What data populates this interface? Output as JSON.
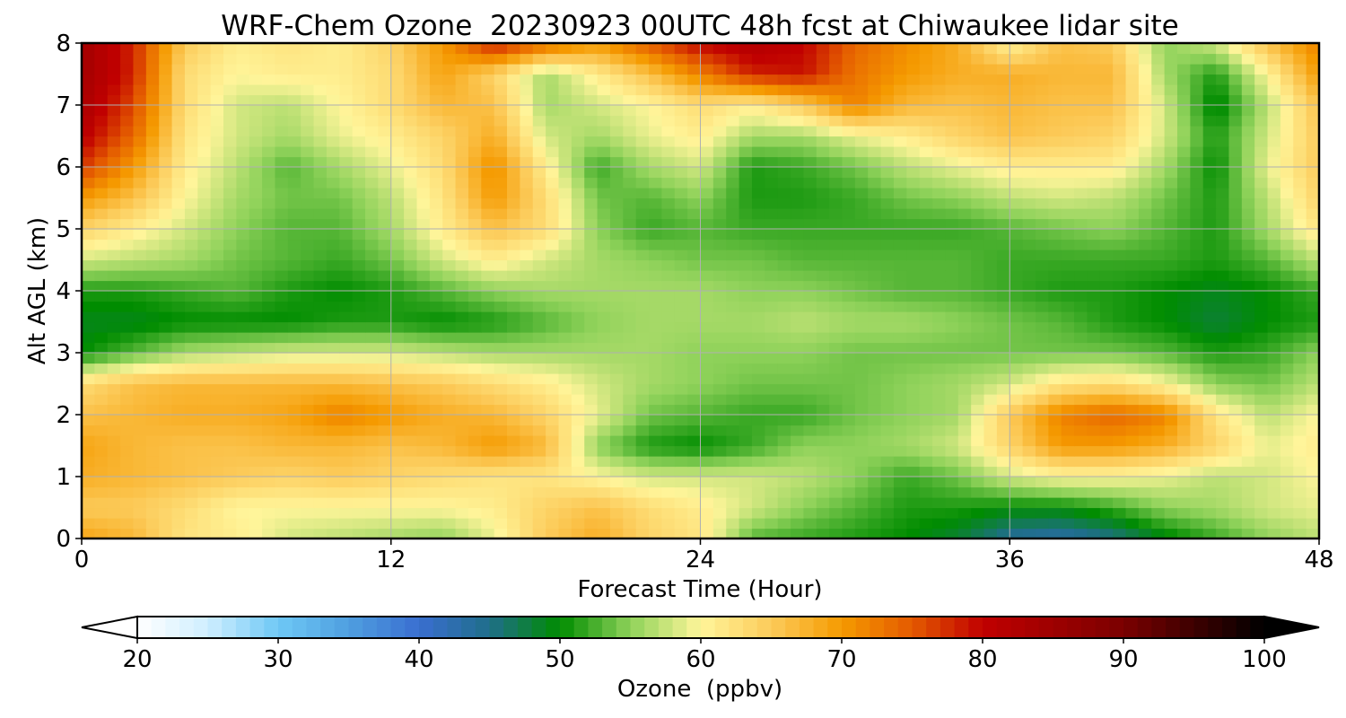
{
  "chart_data": {
    "type": "heatmap",
    "title": "WRF-Chem Ozone  20230923 00UTC 48h fcst at Chiwaukee lidar site",
    "xlabel": "Forecast Time (Hour)",
    "ylabel": "Alt AGL (km)",
    "xlim": [
      0,
      48
    ],
    "ylim": [
      0,
      8
    ],
    "xticks": [
      0,
      12,
      24,
      36,
      48
    ],
    "xtick_labels": [
      "0",
      "12",
      "24",
      "36",
      "48"
    ],
    "yticks": [
      0,
      1,
      2,
      3,
      4,
      5,
      6,
      7,
      8
    ],
    "ytick_labels": [
      "0",
      "1",
      "2",
      "3",
      "4",
      "5",
      "6",
      "7",
      "8"
    ],
    "grid": true,
    "colorbar": {
      "label": "Ozone  (ppbv)",
      "orientation": "horizontal",
      "min": 20,
      "max": 100,
      "ticks": [
        20,
        30,
        40,
        50,
        60,
        70,
        80,
        90,
        100
      ],
      "tick_labels": [
        "20",
        "30",
        "40",
        "50",
        "60",
        "70",
        "80",
        "90",
        "100"
      ],
      "extend": "both",
      "color_stops": [
        [
          20,
          "#ffffff"
        ],
        [
          25,
          "#cfeeff"
        ],
        [
          30,
          "#6ec8f5"
        ],
        [
          35,
          "#4f9fe0"
        ],
        [
          40,
          "#3a6ed0"
        ],
        [
          45,
          "#1f6e8a"
        ],
        [
          50,
          "#008c00"
        ],
        [
          55,
          "#8fd25a"
        ],
        [
          60,
          "#fff59a"
        ],
        [
          65,
          "#fccb5a"
        ],
        [
          70,
          "#f59a00"
        ],
        [
          75,
          "#e45a00"
        ],
        [
          80,
          "#c00000"
        ],
        [
          90,
          "#7a0000"
        ],
        [
          100,
          "#000000"
        ]
      ]
    },
    "x": [
      0,
      2,
      4,
      6,
      8,
      10,
      12,
      14,
      16,
      18,
      20,
      22,
      24,
      26,
      28,
      30,
      32,
      34,
      36,
      38,
      40,
      42,
      44,
      46,
      48
    ],
    "y": [
      0,
      0.5,
      1,
      1.5,
      2,
      2.5,
      3,
      3.5,
      4,
      4.5,
      5,
      5.5,
      6,
      6.5,
      7,
      7.5,
      8
    ],
    "z": [
      [
        69,
        67,
        62,
        61,
        58,
        57,
        56,
        55,
        59,
        65,
        68,
        64,
        62,
        53,
        52,
        51,
        50,
        48,
        44,
        43,
        45,
        49,
        52,
        55,
        57
      ],
      [
        65,
        65,
        63,
        60,
        60,
        60,
        60,
        60,
        61,
        64,
        66,
        63,
        61,
        58,
        55,
        53,
        51,
        51,
        50,
        50,
        52,
        55,
        56,
        58,
        59
      ],
      [
        68,
        67,
        66,
        65,
        64,
        65,
        64,
        63,
        62,
        62,
        60,
        58,
        58,
        58,
        57,
        55,
        52,
        54,
        58,
        60,
        60,
        59,
        57,
        58,
        60
      ],
      [
        69,
        67,
        66,
        66,
        67,
        67,
        66,
        67,
        70,
        67,
        55,
        51,
        50,
        52,
        55,
        55,
        56,
        58,
        64,
        70,
        70,
        68,
        64,
        59,
        61
      ],
      [
        66,
        67,
        68,
        68,
        69,
        72,
        70,
        68,
        67,
        64,
        59,
        54,
        53,
        52,
        52,
        54,
        55,
        56,
        65,
        72,
        74,
        72,
        62,
        57,
        60
      ],
      [
        63,
        66,
        67,
        67,
        67,
        67,
        66,
        65,
        63,
        61,
        58,
        56,
        55,
        54,
        54,
        54,
        55,
        56,
        58,
        62,
        63,
        60,
        55,
        54,
        57
      ],
      [
        50,
        53,
        56,
        57,
        58,
        58,
        58,
        57,
        56,
        56,
        56,
        56,
        55,
        55,
        55,
        54,
        54,
        54,
        54,
        54,
        54,
        53,
        51,
        52,
        55
      ],
      [
        49,
        49,
        50,
        50,
        50,
        51,
        51,
        50,
        51,
        53,
        55,
        56,
        56,
        56,
        57,
        56,
        56,
        55,
        54,
        53,
        51,
        50,
        48,
        50,
        51
      ],
      [
        51,
        51,
        52,
        53,
        51,
        50,
        51,
        53,
        55,
        56,
        56,
        56,
        56,
        55,
        55,
        54,
        53,
        53,
        52,
        51,
        51,
        50,
        49,
        50,
        52
      ],
      [
        58,
        57,
        56,
        54,
        53,
        52,
        54,
        58,
        61,
        58,
        56,
        55,
        54,
        54,
        53,
        53,
        53,
        53,
        52,
        52,
        52,
        52,
        51,
        53,
        57
      ],
      [
        64,
        61,
        58,
        55,
        53,
        53,
        56,
        61,
        66,
        63,
        55,
        52,
        53,
        52,
        52,
        52,
        52,
        52,
        53,
        54,
        55,
        53,
        51,
        56,
        62
      ],
      [
        70,
        66,
        60,
        56,
        54,
        54,
        57,
        62,
        70,
        63,
        54,
        53,
        55,
        51,
        51,
        52,
        54,
        55,
        57,
        58,
        57,
        54,
        51,
        57,
        64
      ],
      [
        77,
        70,
        61,
        57,
        53,
        56,
        59,
        63,
        71,
        61,
        52,
        56,
        58,
        51,
        52,
        54,
        57,
        59,
        61,
        61,
        61,
        56,
        50,
        59,
        65
      ],
      [
        81,
        74,
        62,
        58,
        56,
        59,
        61,
        64,
        68,
        58,
        56,
        59,
        61,
        56,
        56,
        59,
        61,
        64,
        66,
        65,
        64,
        58,
        51,
        58,
        65
      ],
      [
        83,
        76,
        63,
        58,
        57,
        60,
        63,
        67,
        66,
        56,
        58,
        60,
        63,
        61,
        65,
        72,
        67,
        66,
        67,
        66,
        66,
        58,
        49,
        57,
        66
      ],
      [
        84,
        78,
        63,
        60,
        61,
        61,
        63,
        69,
        64,
        56,
        61,
        66,
        72,
        78,
        79,
        73,
        70,
        68,
        68,
        67,
        67,
        56,
        51,
        60,
        70
      ],
      [
        84,
        78,
        65,
        61,
        62,
        61,
        64,
        70,
        79,
        74,
        70,
        75,
        80,
        82,
        80,
        74,
        71,
        68,
        60,
        66,
        65,
        55,
        58,
        66,
        72
      ]
    ]
  }
}
